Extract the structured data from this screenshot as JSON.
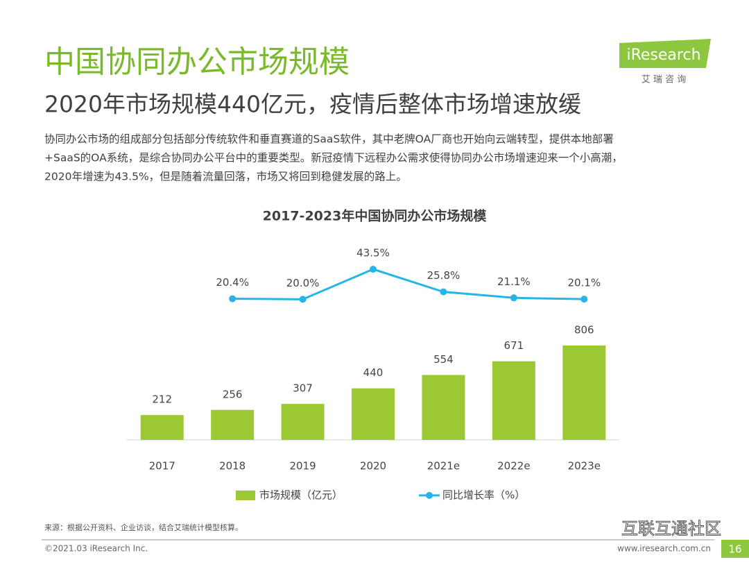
{
  "header": {
    "logo": "iResearch",
    "logo_sub": "艾 瑞 咨 询",
    "title": "中国协同办公市场规模",
    "subtitle": "2020年市场规模440亿元，疫情后整体市场增速放缓",
    "body": [
      "协同办公市场的组成部分包括部分传统软件和垂直赛道的SaaS软件，其中老牌OA厂商也开始向云端转型，提供本地部署",
      "+SaaS的OA系统，是综合协同办公平台中的重要类型。新冠疫情下远程办公需求使得协同办公市场增速迎来一个小高潮，",
      "2020年增速为43.5%，但是随着流量回落，市场又将回到稳健发展的路上。"
    ]
  },
  "chart_data": {
    "type": "bar",
    "title": "2017-2023年中国协同办公市场规模",
    "categories": [
      "2017",
      "2018",
      "2019",
      "2020",
      "2021e",
      "2022e",
      "2023e"
    ],
    "series": [
      {
        "name": "市场规模（亿元）",
        "type": "bar",
        "color": "#9cc833",
        "values": [
          212,
          256,
          307,
          440,
          554,
          671,
          806
        ]
      },
      {
        "name": "同比增长率（%）",
        "type": "line",
        "axis": "y2",
        "color": "#25b5e6",
        "values": [
          null,
          20.4,
          20.0,
          43.5,
          25.8,
          21.1,
          20.1
        ],
        "value_labels": [
          null,
          "20.4%",
          "20.0%",
          "43.5%",
          "25.8%",
          "21.1%",
          "20.1%"
        ]
      }
    ],
    "ylim": [
      0,
      1800
    ],
    "y2lim": [
      -90,
      75
    ]
  },
  "footer": {
    "source": "来源：根据公开资料、企业访谈，结合艾瑞统计模型核算。",
    "copyright": "©2021.03 iResearch Inc.",
    "website": "www.iresearch.com.cn",
    "page": "16",
    "watermark": "互联互通社区"
  }
}
